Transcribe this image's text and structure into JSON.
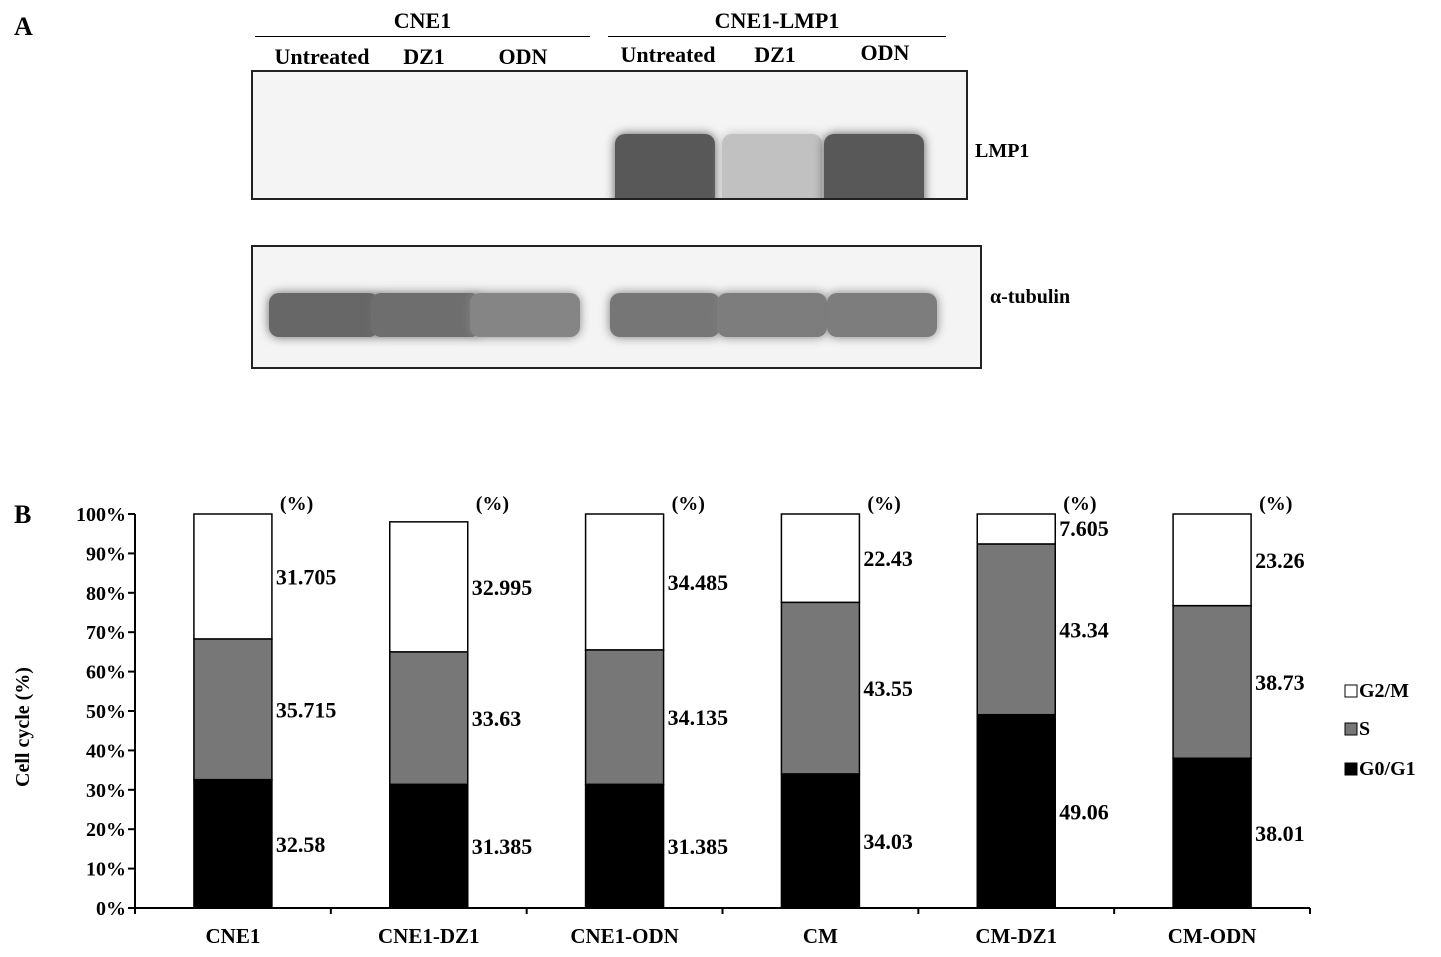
{
  "panel_a": {
    "letter": "A",
    "groups": [
      {
        "name": "CNE1",
        "lanes": [
          "Untreated",
          "DZ1",
          "ODN"
        ]
      },
      {
        "name": "CNE1-LMP1",
        "lanes": [
          "Untreated",
          "DZ1",
          "ODN"
        ]
      }
    ],
    "blots": [
      {
        "protein": "LMP1",
        "band_intensity": [
          0,
          0,
          0,
          0.95,
          0.25,
          0.95
        ]
      },
      {
        "protein": "α-tubulin",
        "band_intensity": [
          0.85,
          0.8,
          0.65,
          0.75,
          0.7,
          0.7
        ]
      }
    ]
  },
  "panel_b": {
    "letter": "B"
  },
  "chart_data": {
    "type": "stacked-bar",
    "ylabel": "Cell cycle (%)",
    "ylim": [
      0,
      100
    ],
    "yticks": [
      "0%",
      "10%",
      "20%",
      "30%",
      "40%",
      "50%",
      "60%",
      "70%",
      "80%",
      "90%",
      "100%"
    ],
    "categories": [
      "CNE1",
      "CNE1-DZ1",
      "CNE1-ODN",
      "CM",
      "CM-DZ1",
      "CM-ODN"
    ],
    "bar_unit_label": "(%)",
    "series": [
      {
        "name": "G0/G1",
        "color": "#000000",
        "values": [
          32.58,
          31.385,
          31.385,
          34.03,
          49.06,
          38.01
        ],
        "labels": [
          "32.58",
          "31.385",
          "31.385",
          "34.03",
          "49.06",
          "38.01"
        ]
      },
      {
        "name": "S",
        "color": "#777777",
        "values": [
          35.715,
          33.63,
          34.135,
          43.55,
          43.34,
          38.73
        ],
        "labels": [
          "35.715",
          "33.63",
          "34.135",
          "43.55",
          "43.34",
          "38.73"
        ]
      },
      {
        "name": "G2/M",
        "color": "#ffffff",
        "values": [
          31.705,
          32.995,
          34.485,
          22.43,
          7.605,
          23.26
        ],
        "labels": [
          "31.705",
          "32.995",
          "34.485",
          "22.43",
          "7.605",
          "23.26"
        ]
      }
    ],
    "legend_order": [
      "G2/M",
      "S",
      "G0/G1"
    ],
    "legend_position": "right"
  }
}
